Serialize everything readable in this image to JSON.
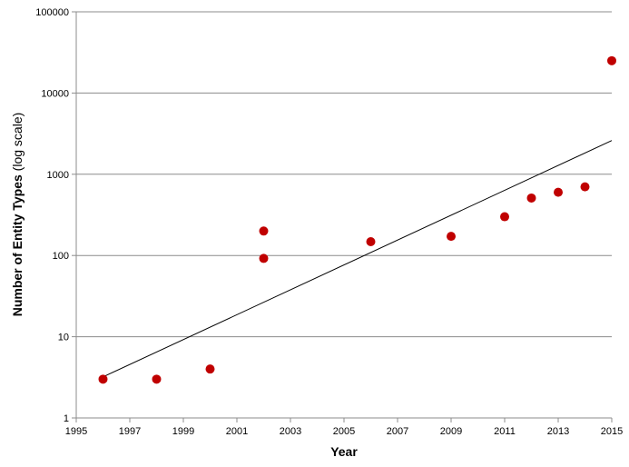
{
  "chart_data": {
    "type": "scatter",
    "xlabel": "Year",
    "ylabel": "Number of Entity Types",
    "ylabel_suffix": "(log scale)",
    "xlim": [
      1995,
      2015
    ],
    "ylim": [
      1,
      100000
    ],
    "yscale": "log",
    "grid": "horizontal",
    "x_ticks": [
      "1995",
      "1997",
      "1999",
      "2001",
      "2003",
      "2005",
      "2007",
      "2009",
      "2011",
      "2013",
      "2015"
    ],
    "y_ticks": [
      "1",
      "10",
      "100",
      "1000",
      "10000",
      "100000"
    ],
    "points": [
      {
        "x": 1996,
        "y": 3
      },
      {
        "x": 1998,
        "y": 3
      },
      {
        "x": 2000,
        "y": 4
      },
      {
        "x": 2002,
        "y": 92
      },
      {
        "x": 2002,
        "y": 200
      },
      {
        "x": 2006,
        "y": 148
      },
      {
        "x": 2009,
        "y": 172
      },
      {
        "x": 2011,
        "y": 300
      },
      {
        "x": 2012,
        "y": 510
      },
      {
        "x": 2013,
        "y": 600
      },
      {
        "x": 2014,
        "y": 700
      },
      {
        "x": 2015,
        "y": 25000
      }
    ],
    "trendline": {
      "type": "exponential",
      "x": [
        1996,
        2015
      ],
      "y": [
        3.2,
        2600
      ]
    },
    "colors": {
      "points": "#c00000",
      "trendline": "#000000",
      "grid": "#8c8c8c",
      "axis": "#8c8c8c"
    }
  }
}
